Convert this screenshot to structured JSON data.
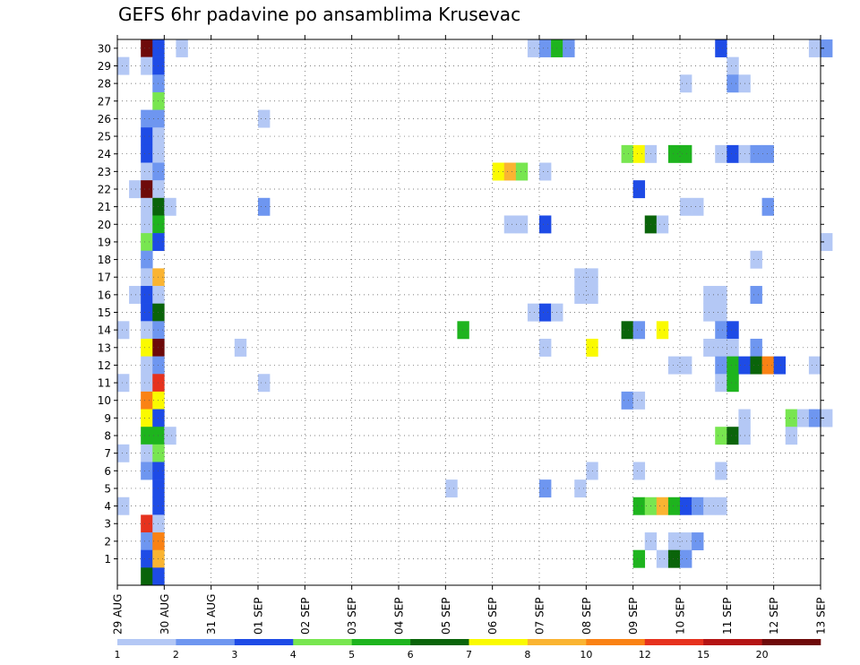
{
  "chart_data": {
    "type": "heatmap",
    "title": "GEFS 6hr padavine po ansamblima Krusevac",
    "xlabel": "",
    "ylabel": "",
    "members": [
      1,
      2,
      3,
      4,
      5,
      6,
      7,
      8,
      9,
      10,
      11,
      12,
      13,
      14,
      15,
      16,
      17,
      18,
      19,
      20,
      21,
      22,
      23,
      24,
      25,
      26,
      27,
      28,
      29,
      30
    ],
    "time_steps_per_day": 4,
    "x_start": "29 AUG",
    "x_tick_labels": [
      "29 AUG",
      "30 AUG",
      "31 AUG",
      "01 SEP",
      "02 SEP",
      "03 SEP",
      "04 SEP",
      "05 SEP",
      "06 SEP",
      "07 SEP",
      "08 SEP",
      "09 SEP",
      "10 SEP",
      "11 SEP",
      "12 SEP",
      "13 SEP"
    ],
    "grid": true,
    "color_scale": {
      "thresholds": [
        1,
        2,
        3,
        4,
        5,
        6,
        7,
        8,
        10,
        12,
        15,
        20
      ],
      "label_positions": [
        1,
        2,
        3,
        4,
        5,
        6,
        7,
        8,
        10,
        12,
        15,
        20
      ],
      "colors": [
        "#b4c8f5",
        "#6e96f0",
        "#1e4be6",
        "#78e650",
        "#1eb41e",
        "#0a640a",
        "#fafa00",
        "#fab432",
        "#fa8214",
        "#e6321e",
        "#b41414",
        "#6e0a0a"
      ]
    },
    "cells": [
      {
        "m": 30,
        "t": 2,
        "c": 11
      },
      {
        "m": 30,
        "t": 3,
        "c": 2
      },
      {
        "m": 30,
        "t": 5,
        "c": 0
      },
      {
        "m": 30,
        "t": 35,
        "c": 0
      },
      {
        "m": 30,
        "t": 36,
        "c": 1
      },
      {
        "m": 30,
        "t": 37,
        "c": 4
      },
      {
        "m": 30,
        "t": 38,
        "c": 1
      },
      {
        "m": 30,
        "t": 51,
        "c": 2
      },
      {
        "m": 30,
        "t": 59,
        "c": 0
      },
      {
        "m": 30,
        "t": 60,
        "c": 1
      },
      {
        "m": 29,
        "t": 0,
        "c": 0
      },
      {
        "m": 29,
        "t": 2,
        "c": 0
      },
      {
        "m": 29,
        "t": 3,
        "c": 2
      },
      {
        "m": 29,
        "t": 52,
        "c": 0
      },
      {
        "m": 28,
        "t": 3,
        "c": 1
      },
      {
        "m": 28,
        "t": 48,
        "c": 0
      },
      {
        "m": 28,
        "t": 52,
        "c": 1
      },
      {
        "m": 28,
        "t": 53,
        "c": 0
      },
      {
        "m": 27,
        "t": 3,
        "c": 3
      },
      {
        "m": 26,
        "t": 2,
        "c": 1
      },
      {
        "m": 26,
        "t": 3,
        "c": 1
      },
      {
        "m": 26,
        "t": 12,
        "c": 0
      },
      {
        "m": 25,
        "t": 2,
        "c": 2
      },
      {
        "m": 25,
        "t": 3,
        "c": 0
      },
      {
        "m": 24,
        "t": 2,
        "c": 2
      },
      {
        "m": 24,
        "t": 3,
        "c": 0
      },
      {
        "m": 24,
        "t": 43,
        "c": 3
      },
      {
        "m": 24,
        "t": 44,
        "c": 6
      },
      {
        "m": 24,
        "t": 45,
        "c": 0
      },
      {
        "m": 24,
        "t": 47,
        "c": 4
      },
      {
        "m": 24,
        "t": 48,
        "c": 4
      },
      {
        "m": 24,
        "t": 51,
        "c": 0
      },
      {
        "m": 24,
        "t": 52,
        "c": 2
      },
      {
        "m": 24,
        "t": 53,
        "c": 0
      },
      {
        "m": 24,
        "t": 54,
        "c": 1
      },
      {
        "m": 24,
        "t": 55,
        "c": 1
      },
      {
        "m": 23,
        "t": 2,
        "c": 0
      },
      {
        "m": 23,
        "t": 3,
        "c": 1
      },
      {
        "m": 23,
        "t": 32,
        "c": 6
      },
      {
        "m": 23,
        "t": 33,
        "c": 7
      },
      {
        "m": 23,
        "t": 34,
        "c": 3
      },
      {
        "m": 23,
        "t": 36,
        "c": 0
      },
      {
        "m": 22,
        "t": 1,
        "c": 0
      },
      {
        "m": 22,
        "t": 2,
        "c": 11
      },
      {
        "m": 22,
        "t": 3,
        "c": 0
      },
      {
        "m": 22,
        "t": 44,
        "c": 2
      },
      {
        "m": 21,
        "t": 2,
        "c": 0
      },
      {
        "m": 21,
        "t": 3,
        "c": 5
      },
      {
        "m": 21,
        "t": 4,
        "c": 0
      },
      {
        "m": 21,
        "t": 12,
        "c": 1
      },
      {
        "m": 21,
        "t": 48,
        "c": 0
      },
      {
        "m": 21,
        "t": 49,
        "c": 0
      },
      {
        "m": 21,
        "t": 55,
        "c": 1
      },
      {
        "m": 20,
        "t": 2,
        "c": 0
      },
      {
        "m": 20,
        "t": 3,
        "c": 4
      },
      {
        "m": 20,
        "t": 33,
        "c": 0
      },
      {
        "m": 20,
        "t": 34,
        "c": 0
      },
      {
        "m": 20,
        "t": 36,
        "c": 2
      },
      {
        "m": 20,
        "t": 45,
        "c": 5
      },
      {
        "m": 20,
        "t": 46,
        "c": 0
      },
      {
        "m": 19,
        "t": 2,
        "c": 3
      },
      {
        "m": 19,
        "t": 3,
        "c": 2
      },
      {
        "m": 19,
        "t": 60,
        "c": 0
      },
      {
        "m": 18,
        "t": 2,
        "c": 1
      },
      {
        "m": 18,
        "t": 54,
        "c": 0
      },
      {
        "m": 17,
        "t": 2,
        "c": 0
      },
      {
        "m": 17,
        "t": 3,
        "c": 7
      },
      {
        "m": 17,
        "t": 39,
        "c": 0
      },
      {
        "m": 17,
        "t": 40,
        "c": 0
      },
      {
        "m": 16,
        "t": 1,
        "c": 0
      },
      {
        "m": 16,
        "t": 2,
        "c": 2
      },
      {
        "m": 16,
        "t": 3,
        "c": 0
      },
      {
        "m": 16,
        "t": 39,
        "c": 0
      },
      {
        "m": 16,
        "t": 40,
        "c": 0
      },
      {
        "m": 16,
        "t": 50,
        "c": 0
      },
      {
        "m": 16,
        "t": 51,
        "c": 0
      },
      {
        "m": 16,
        "t": 54,
        "c": 1
      },
      {
        "m": 15,
        "t": 2,
        "c": 2
      },
      {
        "m": 15,
        "t": 3,
        "c": 5
      },
      {
        "m": 15,
        "t": 35,
        "c": 0
      },
      {
        "m": 15,
        "t": 36,
        "c": 2
      },
      {
        "m": 15,
        "t": 37,
        "c": 0
      },
      {
        "m": 15,
        "t": 50,
        "c": 0
      },
      {
        "m": 15,
        "t": 51,
        "c": 0
      },
      {
        "m": 14,
        "t": 0,
        "c": 0
      },
      {
        "m": 14,
        "t": 2,
        "c": 0
      },
      {
        "m": 14,
        "t": 3,
        "c": 1
      },
      {
        "m": 14,
        "t": 29,
        "c": 4
      },
      {
        "m": 14,
        "t": 43,
        "c": 5
      },
      {
        "m": 14,
        "t": 44,
        "c": 1
      },
      {
        "m": 14,
        "t": 46,
        "c": 6
      },
      {
        "m": 14,
        "t": 51,
        "c": 1
      },
      {
        "m": 14,
        "t": 52,
        "c": 2
      },
      {
        "m": 13,
        "t": 2,
        "c": 6
      },
      {
        "m": 13,
        "t": 3,
        "c": 11
      },
      {
        "m": 13,
        "t": 10,
        "c": 0
      },
      {
        "m": 13,
        "t": 36,
        "c": 0
      },
      {
        "m": 13,
        "t": 40,
        "c": 6
      },
      {
        "m": 13,
        "t": 50,
        "c": 0
      },
      {
        "m": 13,
        "t": 51,
        "c": 0
      },
      {
        "m": 13,
        "t": 52,
        "c": 0
      },
      {
        "m": 13,
        "t": 54,
        "c": 1
      },
      {
        "m": 12,
        "t": 2,
        "c": 0
      },
      {
        "m": 12,
        "t": 3,
        "c": 1
      },
      {
        "m": 12,
        "t": 47,
        "c": 0
      },
      {
        "m": 12,
        "t": 48,
        "c": 0
      },
      {
        "m": 12,
        "t": 51,
        "c": 1
      },
      {
        "m": 12,
        "t": 52,
        "c": 4
      },
      {
        "m": 12,
        "t": 53,
        "c": 2
      },
      {
        "m": 12,
        "t": 54,
        "c": 5
      },
      {
        "m": 12,
        "t": 55,
        "c": 8
      },
      {
        "m": 12,
        "t": 56,
        "c": 2
      },
      {
        "m": 12,
        "t": 59,
        "c": 0
      },
      {
        "m": 11,
        "t": 0,
        "c": 0
      },
      {
        "m": 11,
        "t": 2,
        "c": 0
      },
      {
        "m": 11,
        "t": 3,
        "c": 9
      },
      {
        "m": 11,
        "t": 12,
        "c": 0
      },
      {
        "m": 11,
        "t": 51,
        "c": 0
      },
      {
        "m": 11,
        "t": 52,
        "c": 4
      },
      {
        "m": 10,
        "t": 2,
        "c": 8
      },
      {
        "m": 10,
        "t": 3,
        "c": 6
      },
      {
        "m": 10,
        "t": 43,
        "c": 1
      },
      {
        "m": 10,
        "t": 44,
        "c": 0
      },
      {
        "m": 9,
        "t": 2,
        "c": 6
      },
      {
        "m": 9,
        "t": 3,
        "c": 2
      },
      {
        "m": 9,
        "t": 53,
        "c": 0
      },
      {
        "m": 9,
        "t": 57,
        "c": 3
      },
      {
        "m": 9,
        "t": 58,
        "c": 0
      },
      {
        "m": 9,
        "t": 59,
        "c": 1
      },
      {
        "m": 9,
        "t": 60,
        "c": 0
      },
      {
        "m": 8,
        "t": 2,
        "c": 4
      },
      {
        "m": 8,
        "t": 3,
        "c": 4
      },
      {
        "m": 8,
        "t": 4,
        "c": 0
      },
      {
        "m": 8,
        "t": 51,
        "c": 3
      },
      {
        "m": 8,
        "t": 52,
        "c": 5
      },
      {
        "m": 8,
        "t": 53,
        "c": 0
      },
      {
        "m": 8,
        "t": 57,
        "c": 0
      },
      {
        "m": 7,
        "t": 0,
        "c": 0
      },
      {
        "m": 7,
        "t": 2,
        "c": 0
      },
      {
        "m": 7,
        "t": 3,
        "c": 3
      },
      {
        "m": 6,
        "t": 2,
        "c": 1
      },
      {
        "m": 6,
        "t": 3,
        "c": 2
      },
      {
        "m": 6,
        "t": 40,
        "c": 0
      },
      {
        "m": 6,
        "t": 44,
        "c": 0
      },
      {
        "m": 6,
        "t": 51,
        "c": 0
      },
      {
        "m": 5,
        "t": 3,
        "c": 2
      },
      {
        "m": 5,
        "t": 28,
        "c": 0
      },
      {
        "m": 5,
        "t": 36,
        "c": 1
      },
      {
        "m": 5,
        "t": 39,
        "c": 0
      },
      {
        "m": 4,
        "t": 0,
        "c": 0
      },
      {
        "m": 4,
        "t": 3,
        "c": 2
      },
      {
        "m": 4,
        "t": 44,
        "c": 4
      },
      {
        "m": 4,
        "t": 45,
        "c": 3
      },
      {
        "m": 4,
        "t": 46,
        "c": 7
      },
      {
        "m": 4,
        "t": 47,
        "c": 4
      },
      {
        "m": 4,
        "t": 48,
        "c": 2
      },
      {
        "m": 4,
        "t": 49,
        "c": 1
      },
      {
        "m": 4,
        "t": 50,
        "c": 0
      },
      {
        "m": 4,
        "t": 51,
        "c": 0
      },
      {
        "m": 3,
        "t": 2,
        "c": 9
      },
      {
        "m": 3,
        "t": 3,
        "c": 0
      },
      {
        "m": 2,
        "t": 2,
        "c": 1
      },
      {
        "m": 2,
        "t": 3,
        "c": 8
      },
      {
        "m": 2,
        "t": 45,
        "c": 0
      },
      {
        "m": 2,
        "t": 47,
        "c": 0
      },
      {
        "m": 2,
        "t": 48,
        "c": 0
      },
      {
        "m": 2,
        "t": 49,
        "c": 1
      },
      {
        "m": 1,
        "t": 2,
        "c": 2
      },
      {
        "m": 1,
        "t": 3,
        "c": 7
      },
      {
        "m": 1,
        "t": 44,
        "c": 4
      },
      {
        "m": 1,
        "t": 46,
        "c": 0
      },
      {
        "m": 1,
        "t": 47,
        "c": 5
      },
      {
        "m": 1,
        "t": 48,
        "c": 1
      },
      {
        "m": 0,
        "t": 2,
        "c": 5
      },
      {
        "m": 0,
        "t": 3,
        "c": 2
      }
    ]
  }
}
